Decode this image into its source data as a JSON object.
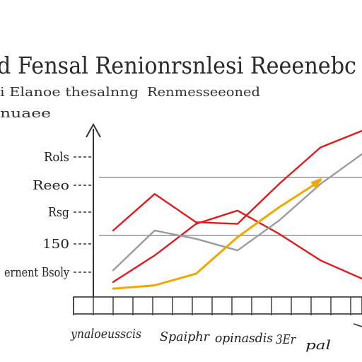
{
  "header": {
    "title": "d Fensal Renionrsnlesi Reeenebc",
    "subtitle_left": "i Elanoe thesalnng",
    "subtitle_right": "Renmesseeoned",
    "side_label": "nuaee"
  },
  "chart_data": {
    "type": "line",
    "title": "d Fensal Renionrsnlesi Reeenebc",
    "xlabel": "",
    "ylabel": "",
    "y_tick_labels": [
      "Rols",
      "Reeo",
      "Rsg",
      "150",
      "ernent Bsoly"
    ],
    "x_tick_labels": [
      "ynaloeusscis",
      "Spaiphr",
      "opinasdis",
      "3Er",
      "pal"
    ],
    "x": [
      0,
      1,
      2,
      3,
      4,
      5,
      6
    ],
    "ylim": [
      0,
      100
    ],
    "grid": false,
    "series": [
      {
        "color": "#e01b1b",
        "values": [
          40,
          62,
          45,
          44,
          68,
          90,
          100
        ]
      },
      {
        "color": "#e01b1b",
        "values": [
          9,
          25,
          44,
          52,
          38,
          22,
          11
        ]
      },
      {
        "color": "#9a9aa2",
        "values": [
          16,
          40,
          35,
          28,
          46,
          68,
          86
        ]
      },
      {
        "color": "#f0a800",
        "values": [
          5,
          7,
          14,
          36,
          54,
          70,
          null
        ]
      }
    ],
    "reference_lines": [
      {
        "y": 72
      },
      {
        "y": 37
      }
    ],
    "colors": {
      "axis": "#333333",
      "reference": "#8a8a8a"
    }
  }
}
